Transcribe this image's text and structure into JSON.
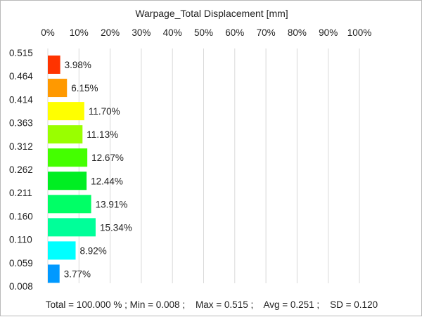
{
  "chart_data": {
    "type": "bar",
    "orientation": "horizontal",
    "title": "Warpage_Total Displacement [mm]",
    "x_axis": {
      "position": "top",
      "range": [
        0,
        100
      ],
      "unit": "%",
      "ticks": [
        "0%",
        "10%",
        "20%",
        "30%",
        "40%",
        "50%",
        "60%",
        "70%",
        "80%",
        "90%",
        "100%"
      ]
    },
    "bin_edges": [
      "0.515",
      "0.464",
      "0.414",
      "0.363",
      "0.312",
      "0.262",
      "0.211",
      "0.160",
      "0.110",
      "0.059",
      "0.008"
    ],
    "values": [
      3.98,
      6.15,
      11.7,
      11.13,
      12.67,
      12.44,
      13.91,
      15.34,
      8.92,
      3.77
    ],
    "value_labels": [
      "3.98%",
      "6.15%",
      "11.70%",
      "11.13%",
      "12.67%",
      "12.44%",
      "13.91%",
      "15.34%",
      "8.92%",
      "3.77%"
    ],
    "colors": [
      "#ff3300",
      "#ff9900",
      "#ffff00",
      "#99ff00",
      "#44ff00",
      "#00ee22",
      "#00ff66",
      "#00ff99",
      "#00ffff",
      "#0099ff",
      "#0033ff"
    ],
    "grid": true,
    "footer": "Total = 100.000 % ; Min = 0.008 ;    Max = 0.515 ;    Avg = 0.251 ;    SD = 0.120"
  }
}
